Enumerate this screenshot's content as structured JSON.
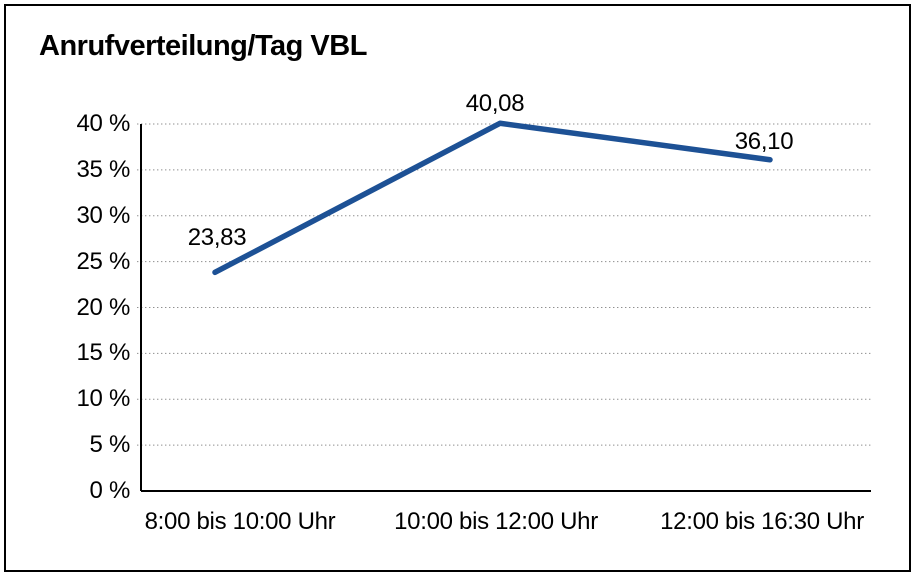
{
  "title": "Anrufverteilung/Tag VBL",
  "chart_data": {
    "type": "line",
    "title": "Anrufverteilung/Tag VBL",
    "categories": [
      "8:00 bis 10:00 Uhr",
      "10:00 bis 12:00 Uhr",
      "12:00 bis 16:30 Uhr"
    ],
    "series": [
      {
        "name": "Anrufverteilung/Tag VBL",
        "values": [
          23.83,
          40.08,
          36.1
        ],
        "color": "#1d5195"
      }
    ],
    "data_labels": [
      "23,83",
      "40,08",
      "36,10"
    ],
    "ylim": [
      0,
      40
    ],
    "ytick_step": 5,
    "ytick_labels": [
      "0 %",
      "5 %",
      "10 %",
      "15 %",
      "20 %",
      "25 %",
      "30 %",
      "35 %",
      "40 %"
    ],
    "xlabel": "",
    "ylabel": "",
    "grid": "horizontal-dotted",
    "gridline_color": "#8f8f8f",
    "axis_color": "#000000",
    "text_color": "#000000",
    "background_color": "#ffffff",
    "border_color": "#000000",
    "legend": "none"
  }
}
